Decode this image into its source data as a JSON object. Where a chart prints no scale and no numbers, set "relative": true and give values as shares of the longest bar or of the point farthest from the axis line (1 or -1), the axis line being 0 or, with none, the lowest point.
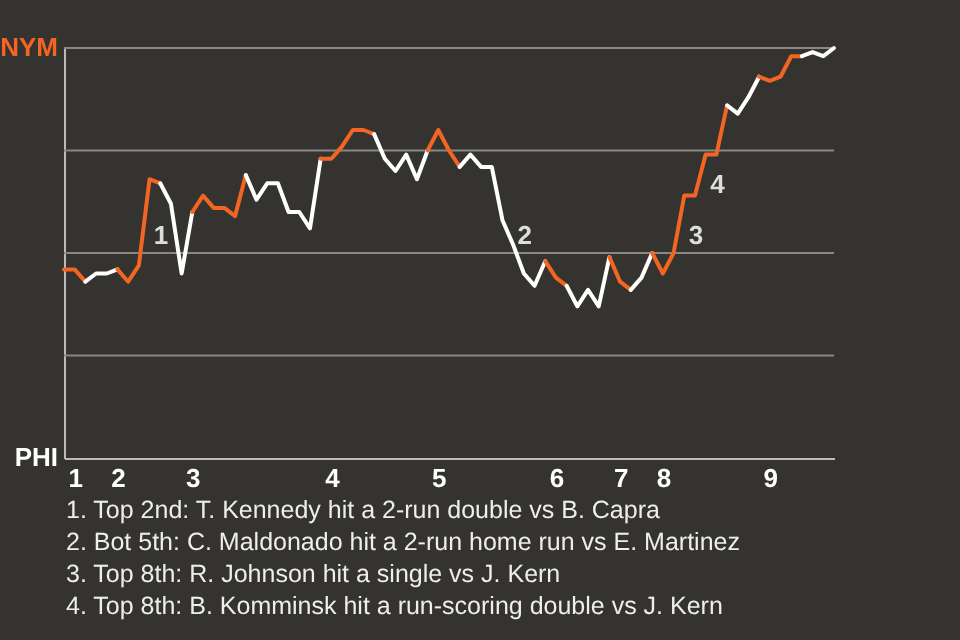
{
  "chart_data": {
    "type": "line",
    "relative": true,
    "categories": [
      null,
      "1",
      null,
      null,
      null,
      "2",
      null,
      null,
      null,
      null,
      null,
      null,
      "3",
      null,
      null,
      null,
      null,
      null,
      null,
      null,
      null,
      null,
      null,
      null,
      null,
      "4",
      null,
      null,
      null,
      null,
      null,
      null,
      null,
      null,
      null,
      "5",
      null,
      null,
      null,
      null,
      null,
      null,
      null,
      null,
      null,
      null,
      "6",
      null,
      null,
      null,
      null,
      null,
      "7",
      null,
      null,
      null,
      "8",
      null,
      null,
      null,
      null,
      null,
      null,
      null,
      null,
      null,
      "9",
      null,
      null,
      null,
      null,
      null,
      null
    ],
    "series": [
      {
        "color": "#f26522",
        "values": [
          0.46,
          0.46,
          0.43,
          null,
          null,
          null,
          null,
          null,
          null,
          null,
          null,
          null,
          null,
          null,
          null,
          null,
          null,
          null,
          null,
          null,
          null,
          null,
          null,
          null,
          null,
          null,
          null,
          null,
          null,
          null,
          null,
          null,
          null,
          null,
          null,
          null,
          null,
          null,
          null,
          null,
          null,
          null,
          null,
          null,
          null,
          null,
          null,
          null,
          null,
          null,
          null,
          null,
          null,
          null,
          null,
          null,
          null,
          null,
          null,
          null,
          null,
          null,
          null,
          null,
          null,
          null,
          null,
          null,
          null,
          null,
          null,
          null,
          null
        ]
      },
      {
        "color": "#ffffff",
        "values": [
          null,
          null,
          0.43,
          0.45,
          0.45,
          0.46,
          null,
          null,
          null,
          null,
          null,
          null,
          null,
          null,
          null,
          null,
          null,
          null,
          null,
          null,
          null,
          null,
          null,
          null,
          null,
          null,
          null,
          null,
          null,
          null,
          null,
          null,
          null,
          null,
          null,
          null,
          null,
          null,
          null,
          null,
          null,
          null,
          null,
          null,
          null,
          null,
          null,
          null,
          null,
          null,
          null,
          null,
          null,
          null,
          null,
          null,
          null,
          null,
          null,
          null,
          null,
          null,
          null,
          null,
          null,
          null,
          null,
          null,
          null,
          null,
          null,
          null,
          null
        ]
      },
      {
        "color": "#f26522",
        "values": [
          null,
          null,
          null,
          null,
          null,
          0.46,
          0.43,
          0.47,
          0.68,
          0.67,
          null,
          null,
          null,
          null,
          null,
          null,
          null,
          null,
          null,
          null,
          null,
          null,
          null,
          null,
          null,
          null,
          null,
          null,
          null,
          null,
          null,
          null,
          null,
          null,
          null,
          null,
          null,
          null,
          null,
          null,
          null,
          null,
          null,
          null,
          null,
          null,
          null,
          null,
          null,
          null,
          null,
          null,
          null,
          null,
          null,
          null,
          null,
          null,
          null,
          null,
          null,
          null,
          null,
          null,
          null,
          null,
          null,
          null,
          null,
          null,
          null,
          null,
          null
        ]
      },
      {
        "color": "#ffffff",
        "values": [
          null,
          null,
          null,
          null,
          null,
          null,
          null,
          null,
          null,
          0.67,
          0.62,
          0.45,
          0.6,
          null,
          null,
          null,
          null,
          null,
          null,
          null,
          null,
          null,
          null,
          null,
          null,
          null,
          null,
          null,
          null,
          null,
          null,
          null,
          null,
          null,
          null,
          null,
          null,
          null,
          null,
          null,
          null,
          null,
          null,
          null,
          null,
          null,
          null,
          null,
          null,
          null,
          null,
          null,
          null,
          null,
          null,
          null,
          null,
          null,
          null,
          null,
          null,
          null,
          null,
          null,
          null,
          null,
          null,
          null,
          null,
          null,
          null,
          null,
          null
        ]
      },
      {
        "color": "#f26522",
        "values": [
          null,
          null,
          null,
          null,
          null,
          null,
          null,
          null,
          null,
          null,
          null,
          null,
          0.6,
          0.64,
          0.61,
          0.61,
          0.59,
          0.69,
          null,
          null,
          null,
          null,
          null,
          null,
          null,
          null,
          null,
          null,
          null,
          null,
          null,
          null,
          null,
          null,
          null,
          null,
          null,
          null,
          null,
          null,
          null,
          null,
          null,
          null,
          null,
          null,
          null,
          null,
          null,
          null,
          null,
          null,
          null,
          null,
          null,
          null,
          null,
          null,
          null,
          null,
          null,
          null,
          null,
          null,
          null,
          null,
          null,
          null,
          null,
          null,
          null,
          null,
          null
        ]
      },
      {
        "color": "#ffffff",
        "values": [
          null,
          null,
          null,
          null,
          null,
          null,
          null,
          null,
          null,
          null,
          null,
          null,
          null,
          null,
          null,
          null,
          null,
          0.69,
          0.63,
          0.67,
          0.67,
          0.6,
          0.6,
          0.56,
          0.73,
          null,
          null,
          null,
          null,
          null,
          null,
          null,
          null,
          null,
          null,
          null,
          null,
          null,
          null,
          null,
          null,
          null,
          null,
          null,
          null,
          null,
          null,
          null,
          null,
          null,
          null,
          null,
          null,
          null,
          null,
          null,
          null,
          null,
          null,
          null,
          null,
          null,
          null,
          null,
          null,
          null,
          null,
          null,
          null,
          null,
          null,
          null,
          null
        ]
      },
      {
        "color": "#f26522",
        "values": [
          null,
          null,
          null,
          null,
          null,
          null,
          null,
          null,
          null,
          null,
          null,
          null,
          null,
          null,
          null,
          null,
          null,
          null,
          null,
          null,
          null,
          null,
          null,
          null,
          0.73,
          0.73,
          0.76,
          0.8,
          0.8,
          0.79,
          null,
          null,
          null,
          null,
          null,
          null,
          null,
          null,
          null,
          null,
          null,
          null,
          null,
          null,
          null,
          null,
          null,
          null,
          null,
          null,
          null,
          null,
          null,
          null,
          null,
          null,
          null,
          null,
          null,
          null,
          null,
          null,
          null,
          null,
          null,
          null,
          null,
          null,
          null,
          null,
          null,
          null,
          null
        ]
      },
      {
        "color": "#ffffff",
        "values": [
          null,
          null,
          null,
          null,
          null,
          null,
          null,
          null,
          null,
          null,
          null,
          null,
          null,
          null,
          null,
          null,
          null,
          null,
          null,
          null,
          null,
          null,
          null,
          null,
          null,
          null,
          null,
          null,
          null,
          0.79,
          0.73,
          0.7,
          0.74,
          0.68,
          0.75,
          null,
          null,
          null,
          null,
          null,
          null,
          null,
          null,
          null,
          null,
          null,
          null,
          null,
          null,
          null,
          null,
          null,
          null,
          null,
          null,
          null,
          null,
          null,
          null,
          null,
          null,
          null,
          null,
          null,
          null,
          null,
          null,
          null,
          null,
          null,
          null,
          null,
          null
        ]
      },
      {
        "color": "#f26522",
        "values": [
          null,
          null,
          null,
          null,
          null,
          null,
          null,
          null,
          null,
          null,
          null,
          null,
          null,
          null,
          null,
          null,
          null,
          null,
          null,
          null,
          null,
          null,
          null,
          null,
          null,
          null,
          null,
          null,
          null,
          null,
          null,
          null,
          null,
          null,
          0.75,
          0.8,
          0.75,
          0.71,
          null,
          null,
          null,
          null,
          null,
          null,
          null,
          null,
          null,
          null,
          null,
          null,
          null,
          null,
          null,
          null,
          null,
          null,
          null,
          null,
          null,
          null,
          null,
          null,
          null,
          null,
          null,
          null,
          null,
          null,
          null,
          null,
          null,
          null,
          null
        ]
      },
      {
        "color": "#ffffff",
        "values": [
          null,
          null,
          null,
          null,
          null,
          null,
          null,
          null,
          null,
          null,
          null,
          null,
          null,
          null,
          null,
          null,
          null,
          null,
          null,
          null,
          null,
          null,
          null,
          null,
          null,
          null,
          null,
          null,
          null,
          null,
          null,
          null,
          null,
          null,
          null,
          null,
          null,
          0.71,
          0.74,
          0.71,
          0.71,
          0.58,
          0.52,
          0.45,
          0.42,
          0.48,
          null,
          null,
          null,
          null,
          null,
          null,
          null,
          null,
          null,
          null,
          null,
          null,
          null,
          null,
          null,
          null,
          null,
          null,
          null,
          null,
          null,
          null,
          null,
          null,
          null,
          null,
          null
        ]
      },
      {
        "color": "#f26522",
        "values": [
          null,
          null,
          null,
          null,
          null,
          null,
          null,
          null,
          null,
          null,
          null,
          null,
          null,
          null,
          null,
          null,
          null,
          null,
          null,
          null,
          null,
          null,
          null,
          null,
          null,
          null,
          null,
          null,
          null,
          null,
          null,
          null,
          null,
          null,
          null,
          null,
          null,
          null,
          null,
          null,
          null,
          null,
          null,
          null,
          null,
          0.48,
          0.44,
          0.42,
          null,
          null,
          null,
          null,
          null,
          null,
          null,
          null,
          null,
          null,
          null,
          null,
          null,
          null,
          null,
          null,
          null,
          null,
          null,
          null,
          null,
          null,
          null,
          null,
          null
        ]
      },
      {
        "color": "#ffffff",
        "values": [
          null,
          null,
          null,
          null,
          null,
          null,
          null,
          null,
          null,
          null,
          null,
          null,
          null,
          null,
          null,
          null,
          null,
          null,
          null,
          null,
          null,
          null,
          null,
          null,
          null,
          null,
          null,
          null,
          null,
          null,
          null,
          null,
          null,
          null,
          null,
          null,
          null,
          null,
          null,
          null,
          null,
          null,
          null,
          null,
          null,
          null,
          null,
          0.42,
          0.37,
          0.41,
          0.37,
          0.49,
          null,
          null,
          null,
          null,
          null,
          null,
          null,
          null,
          null,
          null,
          null,
          null,
          null,
          null,
          null,
          null,
          null,
          null,
          null,
          null,
          null
        ]
      },
      {
        "color": "#f26522",
        "values": [
          null,
          null,
          null,
          null,
          null,
          null,
          null,
          null,
          null,
          null,
          null,
          null,
          null,
          null,
          null,
          null,
          null,
          null,
          null,
          null,
          null,
          null,
          null,
          null,
          null,
          null,
          null,
          null,
          null,
          null,
          null,
          null,
          null,
          null,
          null,
          null,
          null,
          null,
          null,
          null,
          null,
          null,
          null,
          null,
          null,
          null,
          null,
          null,
          null,
          null,
          null,
          0.49,
          0.43,
          0.41,
          null,
          null,
          null,
          null,
          null,
          null,
          null,
          null,
          null,
          null,
          null,
          null,
          null,
          null,
          null,
          null,
          null,
          null,
          null
        ]
      },
      {
        "color": "#ffffff",
        "values": [
          null,
          null,
          null,
          null,
          null,
          null,
          null,
          null,
          null,
          null,
          null,
          null,
          null,
          null,
          null,
          null,
          null,
          null,
          null,
          null,
          null,
          null,
          null,
          null,
          null,
          null,
          null,
          null,
          null,
          null,
          null,
          null,
          null,
          null,
          null,
          null,
          null,
          null,
          null,
          null,
          null,
          null,
          null,
          null,
          null,
          null,
          null,
          null,
          null,
          null,
          null,
          null,
          null,
          0.41,
          0.44,
          0.5,
          null,
          null,
          null,
          null,
          null,
          null,
          null,
          null,
          null,
          null,
          null,
          null,
          null,
          null,
          null,
          null,
          null
        ]
      },
      {
        "color": "#f26522",
        "values": [
          null,
          null,
          null,
          null,
          null,
          null,
          null,
          null,
          null,
          null,
          null,
          null,
          null,
          null,
          null,
          null,
          null,
          null,
          null,
          null,
          null,
          null,
          null,
          null,
          null,
          null,
          null,
          null,
          null,
          null,
          null,
          null,
          null,
          null,
          null,
          null,
          null,
          null,
          null,
          null,
          null,
          null,
          null,
          null,
          null,
          null,
          null,
          null,
          null,
          null,
          null,
          null,
          null,
          null,
          null,
          0.5,
          0.45,
          0.5,
          0.64,
          0.64,
          0.74,
          0.74,
          0.86,
          null,
          null,
          null,
          null,
          null,
          null,
          null,
          null,
          null,
          null
        ]
      },
      {
        "color": "#ffffff",
        "values": [
          null,
          null,
          null,
          null,
          null,
          null,
          null,
          null,
          null,
          null,
          null,
          null,
          null,
          null,
          null,
          null,
          null,
          null,
          null,
          null,
          null,
          null,
          null,
          null,
          null,
          null,
          null,
          null,
          null,
          null,
          null,
          null,
          null,
          null,
          null,
          null,
          null,
          null,
          null,
          null,
          null,
          null,
          null,
          null,
          null,
          null,
          null,
          null,
          null,
          null,
          null,
          null,
          null,
          null,
          null,
          null,
          null,
          null,
          null,
          null,
          null,
          null,
          0.86,
          0.84,
          0.88,
          0.93,
          null,
          null,
          null,
          null,
          null,
          null,
          null
        ]
      },
      {
        "color": "#f26522",
        "values": [
          null,
          null,
          null,
          null,
          null,
          null,
          null,
          null,
          null,
          null,
          null,
          null,
          null,
          null,
          null,
          null,
          null,
          null,
          null,
          null,
          null,
          null,
          null,
          null,
          null,
          null,
          null,
          null,
          null,
          null,
          null,
          null,
          null,
          null,
          null,
          null,
          null,
          null,
          null,
          null,
          null,
          null,
          null,
          null,
          null,
          null,
          null,
          null,
          null,
          null,
          null,
          null,
          null,
          null,
          null,
          null,
          null,
          null,
          null,
          null,
          null,
          null,
          null,
          null,
          null,
          0.93,
          0.92,
          0.93,
          0.98,
          0.98,
          null,
          null,
          null
        ]
      },
      {
        "color": "#ffffff",
        "values": [
          null,
          null,
          null,
          null,
          null,
          null,
          null,
          null,
          null,
          null,
          null,
          null,
          null,
          null,
          null,
          null,
          null,
          null,
          null,
          null,
          null,
          null,
          null,
          null,
          null,
          null,
          null,
          null,
          null,
          null,
          null,
          null,
          null,
          null,
          null,
          null,
          null,
          null,
          null,
          null,
          null,
          null,
          null,
          null,
          null,
          null,
          null,
          null,
          null,
          null,
          null,
          null,
          null,
          null,
          null,
          null,
          null,
          null,
          null,
          null,
          null,
          null,
          null,
          null,
          null,
          null,
          null,
          null,
          null,
          0.98,
          0.99,
          0.98,
          1
        ]
      }
    ],
    "ref_lines": [
      {
        "axis": "y",
        "value": 0.25,
        "color": "#8a8886"
      },
      {
        "axis": "y",
        "value": 0.5,
        "color": "#8a8886"
      },
      {
        "axis": "y",
        "value": 0.75,
        "color": "#8a8886"
      },
      {
        "axis": "y",
        "value": 1,
        "color": "#8a8886"
      }
    ],
    "annotations": [
      "NYM",
      "PHI",
      "1",
      "2",
      "3",
      "4",
      "1. Top 2nd: T. Kennedy hit a 2-run double vs B. Capra",
      "2. Bot 5th: C. Maldonado hit a 2-run home run vs E. Martinez",
      "3. Top 8th: R. Johnson hit a single vs J. Kern",
      "4. Top 8th: B. Komminsk hit a run-scoring double vs J. Kern"
    ]
  }
}
